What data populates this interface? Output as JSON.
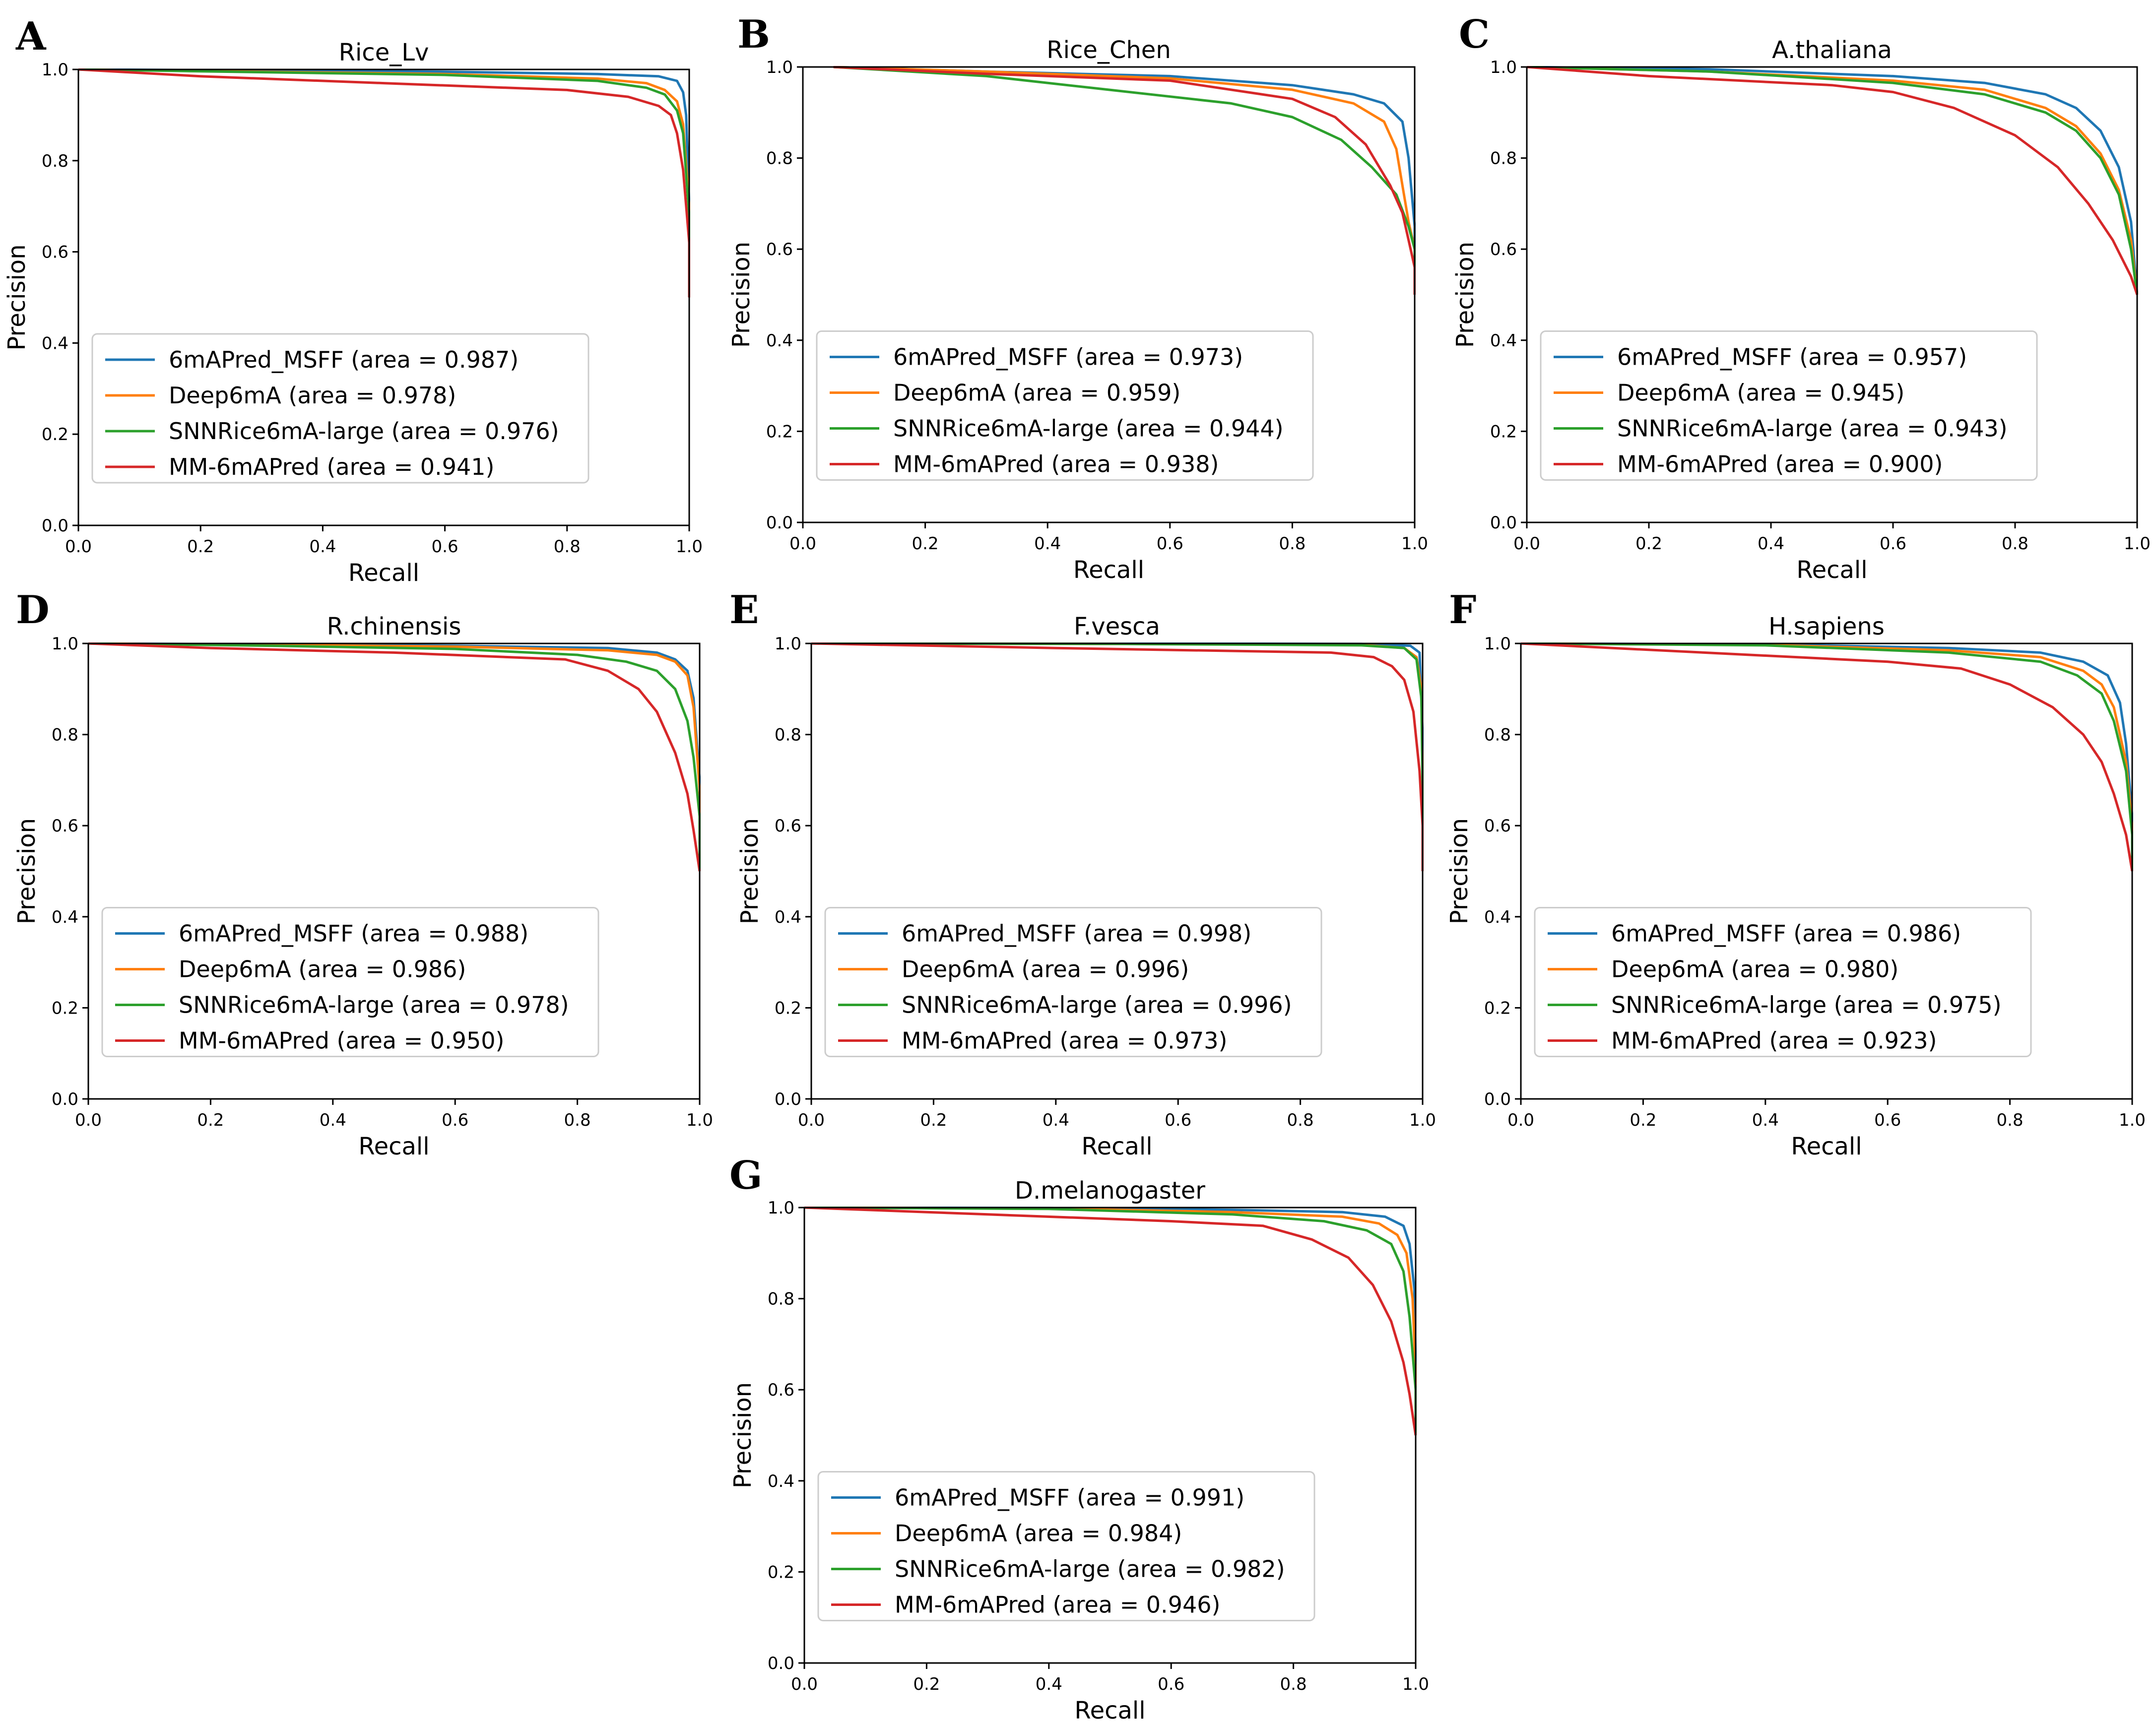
{
  "colors": {
    "series": [
      "#1f77b4",
      "#ff7f0e",
      "#2ca02c",
      "#d62728"
    ],
    "axis": "#000000",
    "legend_border": "#cccccc"
  },
  "chart_data": [
    {
      "panel": "A",
      "type": "line",
      "title": "Rice_Lv",
      "xlabel": "Recall",
      "ylabel": "Precision",
      "xlim": [
        0,
        1
      ],
      "ylim": [
        0,
        1
      ],
      "xticks": [
        "0.0",
        "0.2",
        "0.4",
        "0.6",
        "0.8",
        "1.0"
      ],
      "yticks": [
        "0.0",
        "0.2",
        "0.4",
        "0.6",
        "0.8",
        "1.0"
      ],
      "legend": "lower-left",
      "series": [
        {
          "name": "6mAPred_MSFF (area = 0.987)",
          "x": [
            0,
            0.3,
            0.6,
            0.85,
            0.95,
            0.98,
            0.99,
            0.995,
            1.0,
            1.0
          ],
          "y": [
            1.0,
            0.998,
            0.995,
            0.99,
            0.985,
            0.975,
            0.95,
            0.9,
            0.7,
            0.5
          ]
        },
        {
          "name": "Deep6mA (area = 0.978)",
          "x": [
            0,
            0.3,
            0.6,
            0.85,
            0.93,
            0.96,
            0.98,
            0.99,
            1.0,
            1.0
          ],
          "y": [
            1.0,
            0.995,
            0.99,
            0.98,
            0.97,
            0.955,
            0.93,
            0.88,
            0.7,
            0.5
          ]
        },
        {
          "name": "SNNRice6mA-large (area = 0.976)",
          "x": [
            0,
            0.3,
            0.6,
            0.85,
            0.93,
            0.96,
            0.98,
            0.99,
            1.0,
            1.0
          ],
          "y": [
            1.0,
            0.994,
            0.988,
            0.975,
            0.96,
            0.945,
            0.91,
            0.86,
            0.68,
            0.5
          ]
        },
        {
          "name": "MM-6mAPred (area = 0.941)",
          "x": [
            0,
            0.2,
            0.5,
            0.8,
            0.9,
            0.95,
            0.97,
            0.98,
            0.99,
            1.0,
            1.0
          ],
          "y": [
            1.0,
            0.985,
            0.97,
            0.955,
            0.94,
            0.92,
            0.9,
            0.86,
            0.78,
            0.62,
            0.5
          ]
        }
      ]
    },
    {
      "panel": "B",
      "type": "line",
      "title": "Rice_Chen",
      "xlabel": "Recall",
      "ylabel": "Precision",
      "xlim": [
        0,
        1
      ],
      "ylim": [
        0,
        1
      ],
      "xticks": [
        "0.0",
        "0.2",
        "0.4",
        "0.6",
        "0.8",
        "1.0"
      ],
      "yticks": [
        "0.0",
        "0.2",
        "0.4",
        "0.6",
        "0.8",
        "1.0"
      ],
      "legend": "lower-left",
      "series": [
        {
          "name": "6mAPred_MSFF (area = 0.973)",
          "x": [
            0.05,
            0.3,
            0.6,
            0.8,
            0.9,
            0.95,
            0.98,
            0.99,
            1.0,
            1.0
          ],
          "y": [
            1.0,
            0.99,
            0.98,
            0.96,
            0.94,
            0.92,
            0.88,
            0.8,
            0.65,
            0.55
          ]
        },
        {
          "name": "Deep6mA (area = 0.959)",
          "x": [
            0.05,
            0.3,
            0.6,
            0.8,
            0.9,
            0.95,
            0.97,
            0.98,
            0.99,
            1.0,
            1.0
          ],
          "y": [
            1.0,
            0.99,
            0.975,
            0.95,
            0.92,
            0.88,
            0.82,
            0.74,
            0.66,
            0.6,
            0.52
          ]
        },
        {
          "name": "SNNRice6mA-large (area = 0.944)",
          "x": [
            0.05,
            0.3,
            0.5,
            0.7,
            0.8,
            0.88,
            0.93,
            0.97,
            0.99,
            1.0,
            1.0
          ],
          "y": [
            1.0,
            0.98,
            0.95,
            0.92,
            0.89,
            0.84,
            0.78,
            0.72,
            0.65,
            0.6,
            0.56
          ]
        },
        {
          "name": "MM-6mAPred (area = 0.938)",
          "x": [
            0.05,
            0.3,
            0.6,
            0.8,
            0.87,
            0.92,
            0.96,
            0.98,
            0.99,
            1.0,
            1.0
          ],
          "y": [
            1.0,
            0.985,
            0.97,
            0.93,
            0.89,
            0.83,
            0.74,
            0.68,
            0.62,
            0.56,
            0.5
          ]
        }
      ]
    },
    {
      "panel": "C",
      "type": "line",
      "title": "A.thaliana",
      "xlabel": "Recall",
      "ylabel": "Precision",
      "xlim": [
        0,
        1
      ],
      "ylim": [
        0,
        1
      ],
      "xticks": [
        "0.0",
        "0.2",
        "0.4",
        "0.6",
        "0.8",
        "1.0"
      ],
      "yticks": [
        "0.0",
        "0.2",
        "0.4",
        "0.6",
        "0.8",
        "1.0"
      ],
      "legend": "lower-left",
      "series": [
        {
          "name": "6mAPred_MSFF (area = 0.957)",
          "x": [
            0,
            0.3,
            0.6,
            0.75,
            0.85,
            0.9,
            0.94,
            0.97,
            0.99,
            1.0
          ],
          "y": [
            1.0,
            0.995,
            0.98,
            0.965,
            0.94,
            0.91,
            0.86,
            0.78,
            0.66,
            0.5
          ]
        },
        {
          "name": "Deep6mA (area = 0.945)",
          "x": [
            0,
            0.3,
            0.6,
            0.75,
            0.85,
            0.9,
            0.94,
            0.97,
            0.99,
            1.0
          ],
          "y": [
            1.0,
            0.99,
            0.97,
            0.95,
            0.91,
            0.87,
            0.81,
            0.73,
            0.62,
            0.5
          ]
        },
        {
          "name": "SNNRice6mA-large (area = 0.943)",
          "x": [
            0,
            0.3,
            0.6,
            0.75,
            0.85,
            0.9,
            0.94,
            0.97,
            0.99,
            1.0
          ],
          "y": [
            1.0,
            0.99,
            0.965,
            0.94,
            0.9,
            0.86,
            0.8,
            0.72,
            0.6,
            0.5
          ]
        },
        {
          "name": "MM-6mAPred (area = 0.900)",
          "x": [
            0,
            0.2,
            0.5,
            0.6,
            0.7,
            0.8,
            0.87,
            0.92,
            0.96,
            0.99,
            1.0
          ],
          "y": [
            1.0,
            0.98,
            0.96,
            0.945,
            0.91,
            0.85,
            0.78,
            0.7,
            0.62,
            0.54,
            0.5
          ]
        }
      ]
    },
    {
      "panel": "D",
      "type": "line",
      "title": "R.chinensis",
      "xlabel": "Recall",
      "ylabel": "Precision",
      "xlim": [
        0,
        1
      ],
      "ylim": [
        0,
        1
      ],
      "xticks": [
        "0.0",
        "0.2",
        "0.4",
        "0.6",
        "0.8",
        "1.0"
      ],
      "yticks": [
        "0.0",
        "0.2",
        "0.4",
        "0.6",
        "0.8",
        "1.0"
      ],
      "legend": "lower-left",
      "series": [
        {
          "name": "6mAPred_MSFF (area = 0.988)",
          "x": [
            0,
            0.3,
            0.6,
            0.85,
            0.93,
            0.96,
            0.98,
            0.99,
            1.0,
            1.0
          ],
          "y": [
            1.0,
            0.998,
            0.995,
            0.99,
            0.98,
            0.965,
            0.94,
            0.88,
            0.7,
            0.5
          ]
        },
        {
          "name": "Deep6mA (area = 0.986)",
          "x": [
            0,
            0.3,
            0.6,
            0.85,
            0.93,
            0.96,
            0.98,
            0.99,
            1.0,
            1.0
          ],
          "y": [
            1.0,
            0.997,
            0.993,
            0.985,
            0.975,
            0.96,
            0.93,
            0.86,
            0.68,
            0.5
          ]
        },
        {
          "name": "SNNRice6mA-large (area = 0.978)",
          "x": [
            0,
            0.3,
            0.6,
            0.8,
            0.88,
            0.93,
            0.96,
            0.98,
            0.99,
            1.0,
            1.0
          ],
          "y": [
            1.0,
            0.995,
            0.988,
            0.975,
            0.96,
            0.94,
            0.9,
            0.83,
            0.75,
            0.62,
            0.5
          ]
        },
        {
          "name": "MM-6mAPred (area = 0.950)",
          "x": [
            0,
            0.2,
            0.5,
            0.78,
            0.85,
            0.9,
            0.93,
            0.96,
            0.98,
            0.99,
            1.0
          ],
          "y": [
            1.0,
            0.99,
            0.98,
            0.965,
            0.94,
            0.9,
            0.85,
            0.76,
            0.67,
            0.59,
            0.5
          ]
        }
      ]
    },
    {
      "panel": "E",
      "type": "line",
      "title": "F.vesca",
      "xlabel": "Recall",
      "ylabel": "Precision",
      "xlim": [
        0,
        1
      ],
      "ylim": [
        0,
        1
      ],
      "xticks": [
        "0.0",
        "0.2",
        "0.4",
        "0.6",
        "0.8",
        "1.0"
      ],
      "yticks": [
        "0.0",
        "0.2",
        "0.4",
        "0.6",
        "0.8",
        "1.0"
      ],
      "legend": "lower-left",
      "series": [
        {
          "name": "6mAPred_MSFF (area = 0.998)",
          "x": [
            0,
            0.5,
            0.9,
            0.98,
            0.995,
            1.0,
            1.0
          ],
          "y": [
            1.0,
            1.0,
            0.999,
            0.995,
            0.98,
            0.8,
            0.5
          ]
        },
        {
          "name": "Deep6mA (area = 0.996)",
          "x": [
            0,
            0.5,
            0.9,
            0.97,
            0.99,
            0.998,
            1.0,
            1.0
          ],
          "y": [
            1.0,
            0.999,
            0.997,
            0.99,
            0.97,
            0.9,
            0.7,
            0.5
          ]
        },
        {
          "name": "SNNRice6mA-large (area = 0.996)",
          "x": [
            0,
            0.5,
            0.9,
            0.97,
            0.99,
            0.998,
            1.0,
            1.0
          ],
          "y": [
            1.0,
            0.999,
            0.996,
            0.99,
            0.965,
            0.88,
            0.68,
            0.5
          ]
        },
        {
          "name": "MM-6mAPred (area = 0.973)",
          "x": [
            0,
            0.4,
            0.85,
            0.92,
            0.95,
            0.97,
            0.985,
            0.995,
            1.0,
            1.0
          ],
          "y": [
            1.0,
            0.99,
            0.98,
            0.97,
            0.95,
            0.92,
            0.85,
            0.72,
            0.6,
            0.5
          ]
        }
      ]
    },
    {
      "panel": "F",
      "type": "line",
      "title": "H.sapiens",
      "xlabel": "Recall",
      "ylabel": "Precision",
      "xlim": [
        0,
        1
      ],
      "ylim": [
        0,
        1
      ],
      "xticks": [
        "0.0",
        "0.2",
        "0.4",
        "0.6",
        "0.8",
        "1.0"
      ],
      "yticks": [
        "0.0",
        "0.2",
        "0.4",
        "0.6",
        "0.8",
        "1.0"
      ],
      "legend": "lower-left",
      "series": [
        {
          "name": "6mAPred_MSFF (area = 0.986)",
          "x": [
            0,
            0.4,
            0.7,
            0.85,
            0.92,
            0.96,
            0.98,
            0.99,
            1.0,
            1.0
          ],
          "y": [
            1.0,
            0.998,
            0.99,
            0.98,
            0.96,
            0.93,
            0.87,
            0.78,
            0.62,
            0.5
          ]
        },
        {
          "name": "Deep6mA (area = 0.980)",
          "x": [
            0,
            0.4,
            0.7,
            0.85,
            0.92,
            0.95,
            0.97,
            0.99,
            1.0,
            1.0
          ],
          "y": [
            1.0,
            0.997,
            0.985,
            0.97,
            0.94,
            0.91,
            0.86,
            0.74,
            0.6,
            0.5
          ]
        },
        {
          "name": "SNNRice6mA-large (area = 0.975)",
          "x": [
            0,
            0.4,
            0.7,
            0.85,
            0.91,
            0.95,
            0.97,
            0.99,
            1.0,
            1.0
          ],
          "y": [
            1.0,
            0.996,
            0.98,
            0.96,
            0.93,
            0.89,
            0.83,
            0.72,
            0.58,
            0.5
          ]
        },
        {
          "name": "MM-6mAPred (area = 0.923)",
          "x": [
            0,
            0.3,
            0.6,
            0.72,
            0.8,
            0.87,
            0.92,
            0.95,
            0.97,
            0.99,
            1.0
          ],
          "y": [
            1.0,
            0.98,
            0.96,
            0.945,
            0.91,
            0.86,
            0.8,
            0.74,
            0.67,
            0.58,
            0.5
          ]
        }
      ]
    },
    {
      "panel": "G",
      "type": "line",
      "title": "D.melanogaster",
      "xlabel": "Recall",
      "ylabel": "Precision",
      "xlim": [
        0,
        1
      ],
      "ylim": [
        0,
        1
      ],
      "xticks": [
        "0.0",
        "0.2",
        "0.4",
        "0.6",
        "0.8",
        "1.0"
      ],
      "yticks": [
        "0.0",
        "0.2",
        "0.4",
        "0.6",
        "0.8",
        "1.0"
      ],
      "legend": "lower-left",
      "series": [
        {
          "name": "6mAPred_MSFF (area = 0.991)",
          "x": [
            0,
            0.4,
            0.7,
            0.88,
            0.95,
            0.98,
            0.99,
            0.998,
            1.0,
            1.0
          ],
          "y": [
            1.0,
            0.999,
            0.995,
            0.99,
            0.98,
            0.96,
            0.92,
            0.82,
            0.65,
            0.5
          ]
        },
        {
          "name": "Deep6mA (area = 0.984)",
          "x": [
            0,
            0.4,
            0.7,
            0.88,
            0.94,
            0.97,
            0.985,
            0.995,
            1.0,
            1.0
          ],
          "y": [
            1.0,
            0.998,
            0.99,
            0.98,
            0.965,
            0.94,
            0.9,
            0.8,
            0.64,
            0.5
          ]
        },
        {
          "name": "SNNRice6mA-large (area = 0.982)",
          "x": [
            0,
            0.4,
            0.7,
            0.85,
            0.92,
            0.96,
            0.98,
            0.99,
            1.0,
            1.0
          ],
          "y": [
            1.0,
            0.997,
            0.985,
            0.97,
            0.95,
            0.92,
            0.86,
            0.76,
            0.6,
            0.5
          ]
        },
        {
          "name": "MM-6mAPred (area = 0.946)",
          "x": [
            0,
            0.3,
            0.6,
            0.75,
            0.83,
            0.89,
            0.93,
            0.96,
            0.98,
            0.99,
            1.0
          ],
          "y": [
            1.0,
            0.985,
            0.97,
            0.96,
            0.93,
            0.89,
            0.83,
            0.75,
            0.66,
            0.59,
            0.5
          ]
        }
      ]
    }
  ]
}
